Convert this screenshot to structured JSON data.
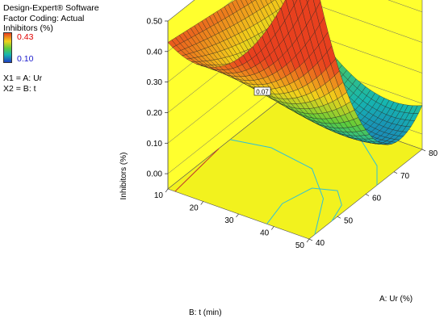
{
  "software": {
    "name": "Design-Expert® Software",
    "coding": "Factor Coding: Actual",
    "response": "Inhibitors (%)"
  },
  "legend": {
    "max": "0.43",
    "min": "0.10",
    "max_color": "#e00000",
    "min_color": "#1a1acc"
  },
  "factors": {
    "x1": "X1 = A: Ur",
    "x2": "X2 = B: t"
  },
  "colors": {
    "wall": "#ffff2e",
    "floor": "#f2f21e",
    "contour": "#2fc0d8"
  },
  "chart_data": {
    "type": "surface3d",
    "title": "",
    "xlabel": "A: Ur (%)",
    "ylabel": "B: t (min)",
    "zlabel": "Inhibitors (%)",
    "x_range": [
      40,
      80
    ],
    "y_range": [
      10,
      50
    ],
    "z_range": [
      -0.05,
      0.5
    ],
    "x_ticks": [
      "40",
      "50",
      "60",
      "70",
      "80"
    ],
    "y_ticks": [
      "10",
      "20",
      "30",
      "40",
      "50"
    ],
    "z_ticks": [
      "0.00",
      "0.10",
      "0.20",
      "0.30",
      "0.40",
      "0.50"
    ],
    "annotation": "0.07",
    "corner_values": {
      "ur40_t10": 0.37,
      "ur80_t10": 0.43,
      "ur40_t50": 0.0,
      "ur80_t50": 0.34
    },
    "minimum": {
      "ur": 72,
      "t": 50,
      "value": -0.04
    }
  }
}
